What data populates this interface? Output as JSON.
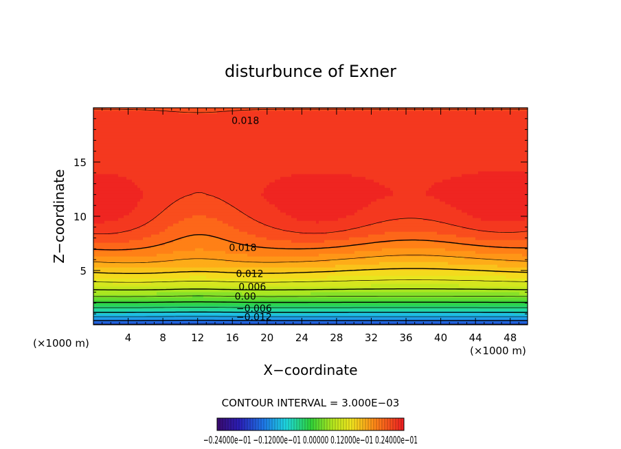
{
  "chart_data": {
    "type": "contour",
    "title": "disturbunce of Exner",
    "xlabel": "X−coordinate",
    "ylabel": "Z−coordinate",
    "x_unit_left": "(×1000 m)",
    "x_unit_right": "(×1000 m)",
    "xlim": [
      0,
      50
    ],
    "ylim": [
      0,
      20
    ],
    "xticks": [
      "4",
      "8",
      "12",
      "16",
      "20",
      "24",
      "28",
      "32",
      "36",
      "40",
      "44",
      "48"
    ],
    "yticks": [
      "5",
      "10",
      "15"
    ],
    "contour_interval_text": "CONTOUR INTERVAL = 3.000E−03",
    "contour_interval": 0.003,
    "contour_labels": [
      {
        "text": "0.018",
        "x": 17.5,
        "z": 18.5
      },
      {
        "text": "0.018",
        "x": 17.2,
        "z": 6.8
      },
      {
        "text": "0.012",
        "x": 18.0,
        "z": 4.4
      },
      {
        "text": "0.006",
        "x": 18.3,
        "z": 3.2
      },
      {
        "text": "0.00",
        "x": 17.5,
        "z": 2.3
      },
      {
        "text": "−0.006",
        "x": 18.5,
        "z": 1.2
      },
      {
        "text": "−0.012",
        "x": 18.5,
        "z": 0.4
      }
    ],
    "features": [
      {
        "type": "maximum",
        "value": 0.021,
        "x": 0.3,
        "z": 9.5
      },
      {
        "type": "maximum",
        "value": 0.021,
        "x": 26.0,
        "z": 9.5
      },
      {
        "type": "maximum",
        "value": 0.021,
        "x": 47.0,
        "z": 9.7
      }
    ],
    "colorbar": {
      "label": "−0.24000e−01 −0.12000e−01 0.00000 0.12000e−01 0.24000e−01",
      "min": -0.024,
      "max": 0.024,
      "colormap": "rainbow"
    },
    "grid": false
  }
}
